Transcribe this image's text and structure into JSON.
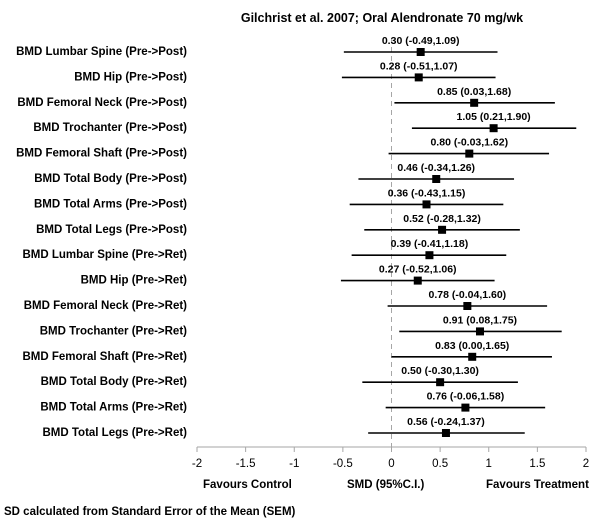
{
  "chart_data": {
    "type": "forest",
    "title": "Gilchrist et al. 2007; Oral Alendronate 70 mg/wk",
    "xlim": [
      -2,
      2
    ],
    "xticks": [
      -2,
      -1.5,
      -1,
      -0.5,
      0,
      0.5,
      1,
      1.5,
      2
    ],
    "xtick_labels": [
      "-2",
      "-1.5",
      "-1",
      "-0.5",
      "0",
      "0.5",
      "1",
      "1.5",
      "2"
    ],
    "reference_line": 0,
    "axis_labels": {
      "left": "Favours  Control",
      "center": "SMD (95%C.I.)",
      "right": "Favours  Treatment"
    },
    "footnote": "SD calculated from Standard Error of the Mean (SEM)",
    "rows": [
      {
        "label": "BMD Lumbar Spine (Pre->Post)",
        "smd": 0.3,
        "lower": -0.49,
        "upper": 1.09,
        "text": "0.30 (-0.49,1.09)"
      },
      {
        "label": "BMD Hip (Pre->Post)",
        "smd": 0.28,
        "lower": -0.51,
        "upper": 1.07,
        "text": "0.28 (-0.51,1.07)"
      },
      {
        "label": "BMD Femoral Neck (Pre->Post)",
        "smd": 0.85,
        "lower": 0.03,
        "upper": 1.68,
        "text": "0.85 (0.03,1.68)"
      },
      {
        "label": "BMD Trochanter (Pre->Post)",
        "smd": 1.05,
        "lower": 0.21,
        "upper": 1.9,
        "text": "1.05 (0.21,1.90)"
      },
      {
        "label": "BMD Femoral Shaft (Pre->Post)",
        "smd": 0.8,
        "lower": -0.03,
        "upper": 1.62,
        "text": "0.80 (-0.03,1.62)"
      },
      {
        "label": "BMD Total Body (Pre->Post)",
        "smd": 0.46,
        "lower": -0.34,
        "upper": 1.26,
        "text": "0.46 (-0.34,1.26)"
      },
      {
        "label": "BMD Total Arms (Pre->Post)",
        "smd": 0.36,
        "lower": -0.43,
        "upper": 1.15,
        "text": "0.36 (-0.43,1.15)"
      },
      {
        "label": "BMD Total Legs (Pre->Post)",
        "smd": 0.52,
        "lower": -0.28,
        "upper": 1.32,
        "text": "0.52 (-0.28,1.32)"
      },
      {
        "label": "BMD Lumbar Spine (Pre->Ret)",
        "smd": 0.39,
        "lower": -0.41,
        "upper": 1.18,
        "text": "0.39 (-0.41,1.18)"
      },
      {
        "label": "BMD Hip (Pre->Ret)",
        "smd": 0.27,
        "lower": -0.52,
        "upper": 1.06,
        "text": "0.27 (-0.52,1.06)"
      },
      {
        "label": "BMD Femoral Neck (Pre->Ret)",
        "smd": 0.78,
        "lower": -0.04,
        "upper": 1.6,
        "text": "0.78 (-0.04,1.60)"
      },
      {
        "label": "BMD Trochanter (Pre->Ret)",
        "smd": 0.91,
        "lower": 0.08,
        "upper": 1.75,
        "text": "0.91 (0.08,1.75)"
      },
      {
        "label": "BMD Femoral Shaft (Pre->Ret)",
        "smd": 0.83,
        "lower": 0.0,
        "upper": 1.65,
        "text": "0.83 (0.00,1.65)"
      },
      {
        "label": "BMD Total Body (Pre->Ret)",
        "smd": 0.5,
        "lower": -0.3,
        "upper": 1.3,
        "text": "0.50 (-0.30,1.30)"
      },
      {
        "label": "BMD Total Arms (Pre->Ret)",
        "smd": 0.76,
        "lower": -0.06,
        "upper": 1.58,
        "text": "0.76 (-0.06,1.58)"
      },
      {
        "label": "BMD Total Legs (Pre->Ret)",
        "smd": 0.56,
        "lower": -0.24,
        "upper": 1.37,
        "text": "0.56 (-0.24,1.37)"
      }
    ],
    "colors": {
      "marker": "#000000",
      "ci_line": "#000000",
      "reference_line": "#a6a6a6",
      "axis": "#a6a6a6"
    }
  }
}
